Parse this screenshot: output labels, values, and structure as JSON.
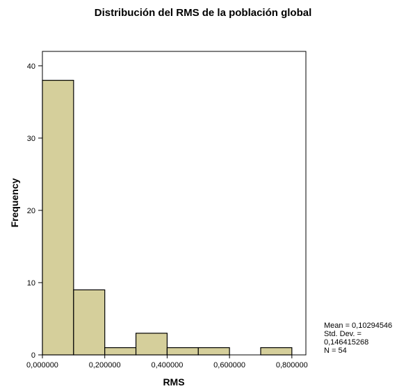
{
  "chart_data": {
    "type": "histogram",
    "title": "Distribución del RMS de la población global",
    "xlabel": "RMS",
    "ylabel": "Frequency",
    "bins": [
      {
        "x0": 0.0,
        "x1": 0.1,
        "count": 38
      },
      {
        "x0": 0.1,
        "x1": 0.2,
        "count": 9
      },
      {
        "x0": 0.2,
        "x1": 0.3,
        "count": 1
      },
      {
        "x0": 0.3,
        "x1": 0.4,
        "count": 3
      },
      {
        "x0": 0.4,
        "x1": 0.5,
        "count": 1
      },
      {
        "x0": 0.5,
        "x1": 0.6,
        "count": 1
      },
      {
        "x0": 0.6,
        "x1": 0.7,
        "count": 0
      },
      {
        "x0": 0.7,
        "x1": 0.8,
        "count": 1
      }
    ],
    "xlim": [
      0.0,
      0.845
    ],
    "ylim": [
      0,
      42
    ],
    "x_ticks": [
      0.0,
      0.2,
      0.4,
      0.6,
      0.8
    ],
    "x_tick_labels": [
      "0,000000",
      "0,200000",
      "0,400000",
      "0,600000",
      "0,800000"
    ],
    "y_ticks": [
      0,
      10,
      20,
      30,
      40
    ],
    "y_tick_labels": [
      "0",
      "10",
      "20",
      "30",
      "40"
    ],
    "bar_color": "#d5cf9b",
    "grid": false
  },
  "stats": {
    "mean": "Mean = 0,10294546",
    "std_label": "Std. Dev. =",
    "std_value": "0,146415268",
    "n": "N = 54"
  }
}
